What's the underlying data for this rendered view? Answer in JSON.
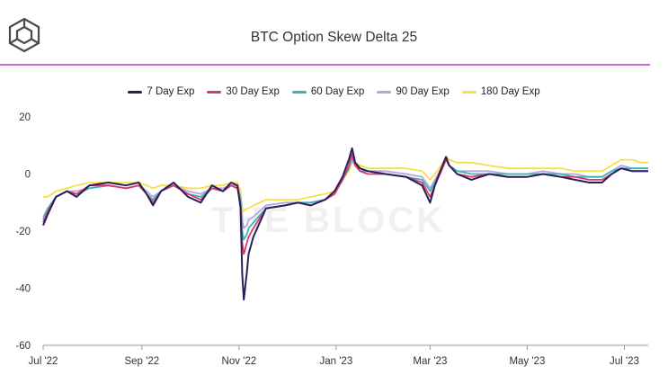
{
  "header": {
    "title": "BTC Option Skew Delta 25",
    "logo_icon": "cube-logo-icon",
    "accent_color": "#c86ad6"
  },
  "watermark": "THE BLOCK",
  "chart_data": {
    "type": "line",
    "title": "BTC Option Skew Delta 25",
    "xlabel": "",
    "ylabel": "",
    "ylim": [
      -60,
      20
    ],
    "yticks": [
      20,
      0,
      -20,
      -40,
      -60
    ],
    "grid": false,
    "legend_position": "top-center",
    "x_tick_labels": [
      "Jul '22",
      "Sep '22",
      "Nov '22",
      "Jan '23",
      "Mar '23",
      "May '23",
      "Jul '23"
    ],
    "x_tick_positions": [
      0,
      62,
      123,
      184,
      243,
      304,
      365
    ],
    "x_range": [
      0,
      380
    ],
    "anchors_x": [
      0,
      3,
      8,
      15,
      21,
      29,
      41,
      52,
      60,
      65,
      69,
      74,
      82,
      91,
      99,
      106,
      113,
      118,
      122,
      124,
      125,
      126,
      128,
      129,
      132,
      140,
      152,
      160,
      168,
      177,
      183,
      188,
      192,
      194,
      196,
      199,
      204,
      215,
      228,
      238,
      243,
      246,
      250,
      253,
      255,
      260,
      269,
      280,
      292,
      304,
      314,
      325,
      334,
      343,
      351,
      357,
      363,
      370,
      375,
      380
    ],
    "series": [
      {
        "name": "7 Day Exp",
        "color": "#2a1f5c",
        "values": [
          -18,
          -14,
          -8,
          -6,
          -8,
          -4,
          -3,
          -4,
          -3,
          -7,
          -11,
          -6,
          -3,
          -8,
          -10,
          -4,
          -6,
          -3,
          -4,
          -12,
          -35,
          -44,
          -34,
          -28,
          -22,
          -12,
          -11,
          -10,
          -11,
          -9,
          -6,
          -1,
          5,
          9,
          4,
          2,
          1,
          0,
          -1,
          -4,
          -10,
          -4,
          2,
          6,
          3,
          0,
          -2,
          0,
          -1,
          -1,
          0,
          -1,
          -2,
          -3,
          -3,
          0,
          2,
          1,
          1,
          1
        ]
      },
      {
        "name": "30 Day Exp",
        "color": "#d93a6b",
        "values": [
          -17,
          -13,
          -8,
          -6,
          -7,
          -4,
          -4,
          -5,
          -4,
          -7,
          -10,
          -6,
          -4,
          -7,
          -9,
          -5,
          -6,
          -4,
          -5,
          -11,
          -24,
          -28,
          -24,
          -22,
          -19,
          -12,
          -11,
          -10,
          -11,
          -9,
          -7,
          -2,
          3,
          7,
          3,
          1,
          0,
          0,
          -1,
          -3,
          -8,
          -4,
          1,
          5,
          3,
          0,
          -1,
          0,
          -1,
          -1,
          0,
          -1,
          -1,
          -2,
          -2,
          0,
          2,
          1,
          1,
          1
        ]
      },
      {
        "name": "60 Day Exp",
        "color": "#39b6b6",
        "values": [
          -16,
          -12,
          -8,
          -6,
          -7,
          -5,
          -4,
          -5,
          -4,
          -7,
          -9,
          -6,
          -4,
          -7,
          -8,
          -5,
          -6,
          -4,
          -5,
          -9,
          -20,
          -23,
          -21,
          -19,
          -17,
          -12,
          -11,
          -10,
          -10,
          -9,
          -7,
          -2,
          2,
          6,
          3,
          1,
          1,
          0,
          -1,
          -2,
          -6,
          -3,
          1,
          5,
          3,
          1,
          0,
          0,
          0,
          0,
          0,
          0,
          -1,
          -1,
          -1,
          1,
          2,
          2,
          2,
          2
        ]
      },
      {
        "name": "90 Day Exp",
        "color": "#b3a8d9",
        "values": [
          -15,
          -12,
          -8,
          -6,
          -6,
          -5,
          -4,
          -5,
          -4,
          -6,
          -8,
          -6,
          -4,
          -6,
          -7,
          -5,
          -5,
          -4,
          -4,
          -8,
          -16,
          -19,
          -18,
          -16,
          -15,
          -11,
          -10,
          -10,
          -10,
          -9,
          -7,
          -2,
          2,
          5,
          3,
          2,
          1,
          1,
          0,
          -1,
          -5,
          -2,
          2,
          5,
          3,
          1,
          1,
          1,
          0,
          0,
          1,
          0,
          0,
          -1,
          -1,
          1,
          3,
          2,
          2,
          2
        ]
      },
      {
        "name": "180 Day Exp",
        "color": "#f5e04a",
        "values": [
          -8,
          -8,
          -6,
          -5,
          -4,
          -3,
          -3,
          -3,
          -3,
          -4,
          -5,
          -4,
          -4,
          -5,
          -5,
          -4,
          -4,
          -3,
          -3,
          -6,
          -12,
          -13,
          -12,
          -12,
          -11,
          -9,
          -9,
          -9,
          -8,
          -7,
          -6,
          -2,
          1,
          4,
          4,
          3,
          2,
          2,
          2,
          1,
          -2,
          0,
          3,
          6,
          5,
          4,
          4,
          3,
          2,
          2,
          2,
          2,
          1,
          1,
          1,
          3,
          5,
          5,
          4,
          4
        ]
      }
    ]
  }
}
